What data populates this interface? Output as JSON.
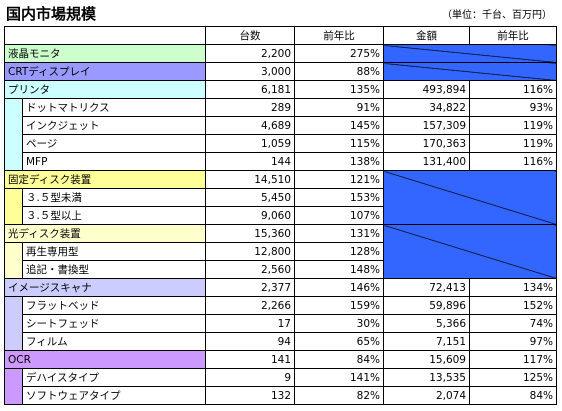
{
  "header": {
    "title": "国内市場規模",
    "note": "（単位：千台、百万円）"
  },
  "table": {
    "columns": [
      "台数",
      "前年比",
      "金額",
      "前年比"
    ],
    "na_color": "#3366ff",
    "groups": [
      {
        "label": "液晶モニタ",
        "color": "#ccffcc",
        "units": "2,200",
        "units_yoy": "275%",
        "items": []
      },
      {
        "label": "CRTディスプレイ",
        "color": "#9999ff",
        "units": "3,000",
        "units_yoy": "88%",
        "items": []
      },
      {
        "label": "プリンタ",
        "color": "#ccffff",
        "units": "6,181",
        "units_yoy": "135%",
        "amount": "493,894",
        "amount_yoy": "116%",
        "items": [
          {
            "label": "ドットマトリクス",
            "units": "289",
            "units_yoy": "91%",
            "amount": "34,822",
            "amount_yoy": "93%"
          },
          {
            "label": "インクジェット",
            "units": "4,689",
            "units_yoy": "145%",
            "amount": "157,309",
            "amount_yoy": "119%"
          },
          {
            "label": "ページ",
            "units": "1,059",
            "units_yoy": "115%",
            "amount": "170,363",
            "amount_yoy": "119%"
          },
          {
            "label": "MFP",
            "units": "144",
            "units_yoy": "138%",
            "amount": "131,400",
            "amount_yoy": "116%"
          }
        ]
      },
      {
        "label": "固定ディスク装置",
        "color": "#ffff99",
        "units": "14,510",
        "units_yoy": "121%",
        "items": [
          {
            "label": "３.５型未満",
            "units": "5,450",
            "units_yoy": "153%"
          },
          {
            "label": "３.５型以上",
            "units": "9,060",
            "units_yoy": "107%"
          }
        ]
      },
      {
        "label": "光ディスク装置",
        "color": "#ffffcc",
        "units": "15,360",
        "units_yoy": "131%",
        "items": [
          {
            "label": "再生専用型",
            "units": "12,800",
            "units_yoy": "128%"
          },
          {
            "label": "追記・書換型",
            "units": "2,560",
            "units_yoy": "148%"
          }
        ]
      },
      {
        "label": "イメージスキャナ",
        "color": "#ccccff",
        "units": "2,377",
        "units_yoy": "146%",
        "amount": "72,413",
        "amount_yoy": "134%",
        "items": [
          {
            "label": "フラットベッド",
            "units": "2,266",
            "units_yoy": "159%",
            "amount": "59,896",
            "amount_yoy": "152%"
          },
          {
            "label": "シートフェッド",
            "units": "17",
            "units_yoy": "30%",
            "amount": "5,366",
            "amount_yoy": "74%"
          },
          {
            "label": "フィルム",
            "units": "94",
            "units_yoy": "65%",
            "amount": "7,151",
            "amount_yoy": "97%"
          }
        ]
      },
      {
        "label": "OCR",
        "color": "#cc99ff",
        "units": "141",
        "units_yoy": "84%",
        "amount": "15,609",
        "amount_yoy": "117%",
        "items": [
          {
            "label": "デハイスタイプ",
            "units": "9",
            "units_yoy": "141%",
            "amount": "13,535",
            "amount_yoy": "125%"
          },
          {
            "label": "ソフトウェアタイプ",
            "units": "132",
            "units_yoy": "82%",
            "amount": "2,074",
            "amount_yoy": "84%"
          }
        ]
      }
    ]
  }
}
